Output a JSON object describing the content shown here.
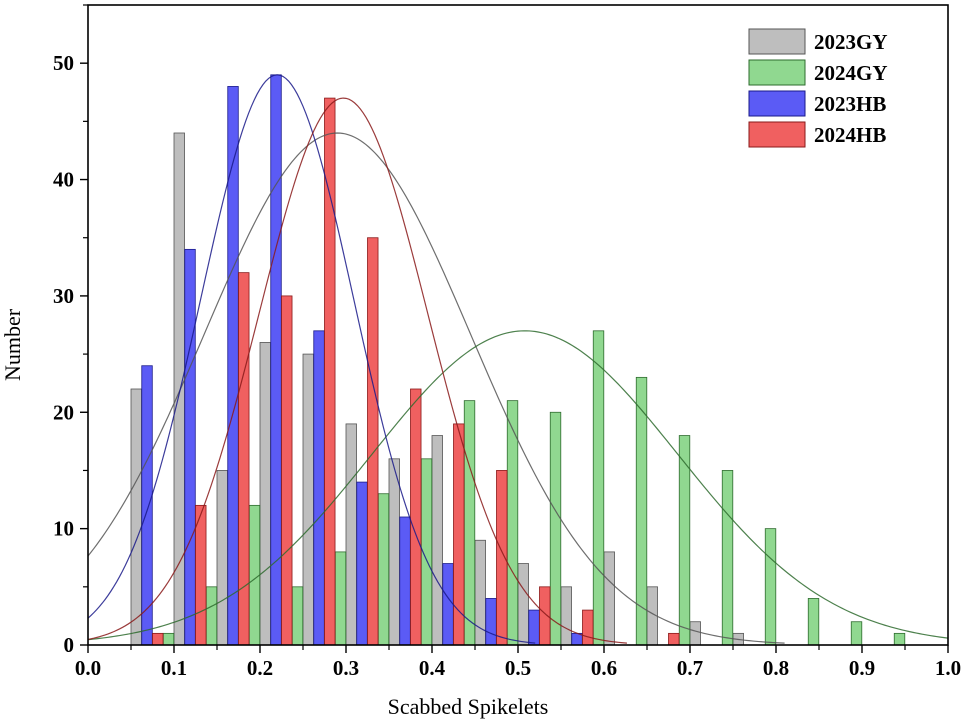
{
  "chart_data": {
    "type": "bar",
    "title": "",
    "xlabel": "Scabbed Spikelets",
    "ylabel": "Number",
    "xlim": [
      0.0,
      1.0
    ],
    "ylim": [
      0,
      55
    ],
    "x_ticks": [
      "0.0",
      "0.1",
      "0.2",
      "0.3",
      "0.4",
      "0.5",
      "0.6",
      "0.7",
      "0.8",
      "0.9",
      "1.0"
    ],
    "y_ticks": [
      "0",
      "10",
      "20",
      "30",
      "40",
      "50"
    ],
    "legend_position": "top-right",
    "grid": false,
    "bin_centers": [
      0.075,
      0.125,
      0.175,
      0.225,
      0.275,
      0.325,
      0.375,
      0.425,
      0.475,
      0.525,
      0.575,
      0.625,
      0.675,
      0.725,
      0.775,
      0.825,
      0.875,
      0.925
    ],
    "series": [
      {
        "name": "2023GY",
        "color": "#bebebe",
        "stroke": "#555555",
        "values": [
          22,
          44,
          15,
          26,
          25,
          19,
          16,
          18,
          9,
          7,
          5,
          8,
          5,
          2,
          1,
          0,
          0,
          0
        ],
        "fit": {
          "mean": 0.29,
          "sd": 0.155,
          "peak": 44
        }
      },
      {
        "name": "2024GY",
        "color": "#90d890",
        "stroke": "#2e6b2e",
        "values": [
          1,
          5,
          12,
          5,
          8,
          13,
          16,
          21,
          21,
          20,
          27,
          23,
          18,
          15,
          10,
          4,
          2,
          1
        ],
        "fit": {
          "mean": 0.508,
          "sd": 0.178,
          "peak": 27
        }
      },
      {
        "name": "2023HB",
        "color": "#5b5bf5",
        "stroke": "#1a1a8a",
        "values": [
          24,
          34,
          48,
          49,
          27,
          14,
          11,
          7,
          4,
          3,
          1,
          0,
          0,
          0,
          0,
          0,
          0,
          0
        ],
        "fit": {
          "mean": 0.22,
          "sd": 0.089,
          "peak": 49
        }
      },
      {
        "name": "2024HB",
        "color": "#f06060",
        "stroke": "#8a1a1a",
        "values": [
          1,
          12,
          32,
          30,
          47,
          35,
          22,
          19,
          15,
          5,
          3,
          0,
          1,
          0,
          0,
          0,
          0,
          0
        ],
        "fit": {
          "mean": 0.297,
          "sd": 0.098,
          "peak": 47
        }
      }
    ]
  }
}
